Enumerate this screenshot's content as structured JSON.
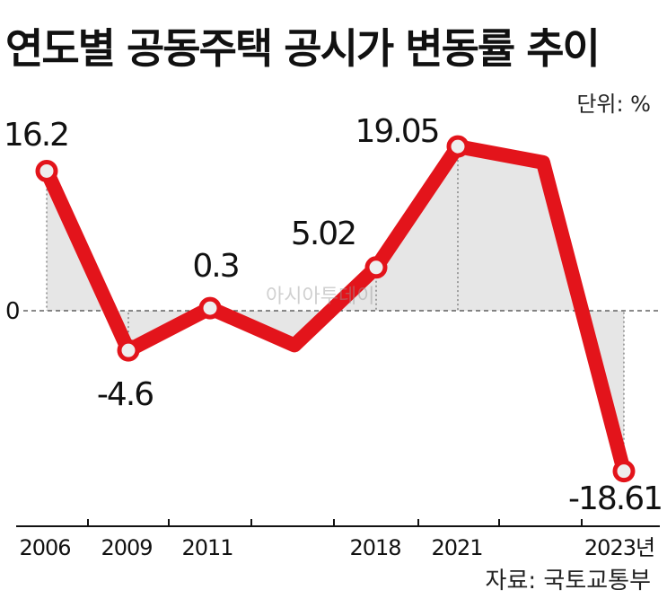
{
  "header": {
    "title": "연도별 공동주택 공시가 변동률 추이",
    "unit": "단위: %",
    "source": "자료: 국토교통부",
    "watermark": "아시아투데이"
  },
  "colors": {
    "line": "#e3141b",
    "area": "#e6e6e6",
    "marker_fill": "#eeeeee",
    "axis": "#111111"
  },
  "chart_data": {
    "type": "line",
    "title": "연도별 공동주택 공시가 변동률 추이",
    "unit": "단위: %",
    "x": [
      2006,
      2009,
      2011,
      2014,
      2018,
      2021,
      2022,
      2023
    ],
    "y": [
      16.2,
      -4.6,
      0.3,
      -4.0,
      5.02,
      19.05,
      17.2,
      -18.61
    ],
    "x_tick_labels": [
      "2006",
      "2009",
      "2011",
      "",
      "2018",
      "2021",
      "",
      "2023년"
    ],
    "data_labels": [
      "16.2",
      "-4.6",
      "0.3",
      "",
      "5.02",
      "19.05",
      "",
      "-18.61"
    ],
    "markers": [
      true,
      true,
      true,
      false,
      true,
      true,
      false,
      true
    ],
    "y_reference": {
      "value": 0,
      "label": "0"
    },
    "ylim": [
      -22,
      20
    ],
    "grid": false,
    "legend": "none"
  }
}
